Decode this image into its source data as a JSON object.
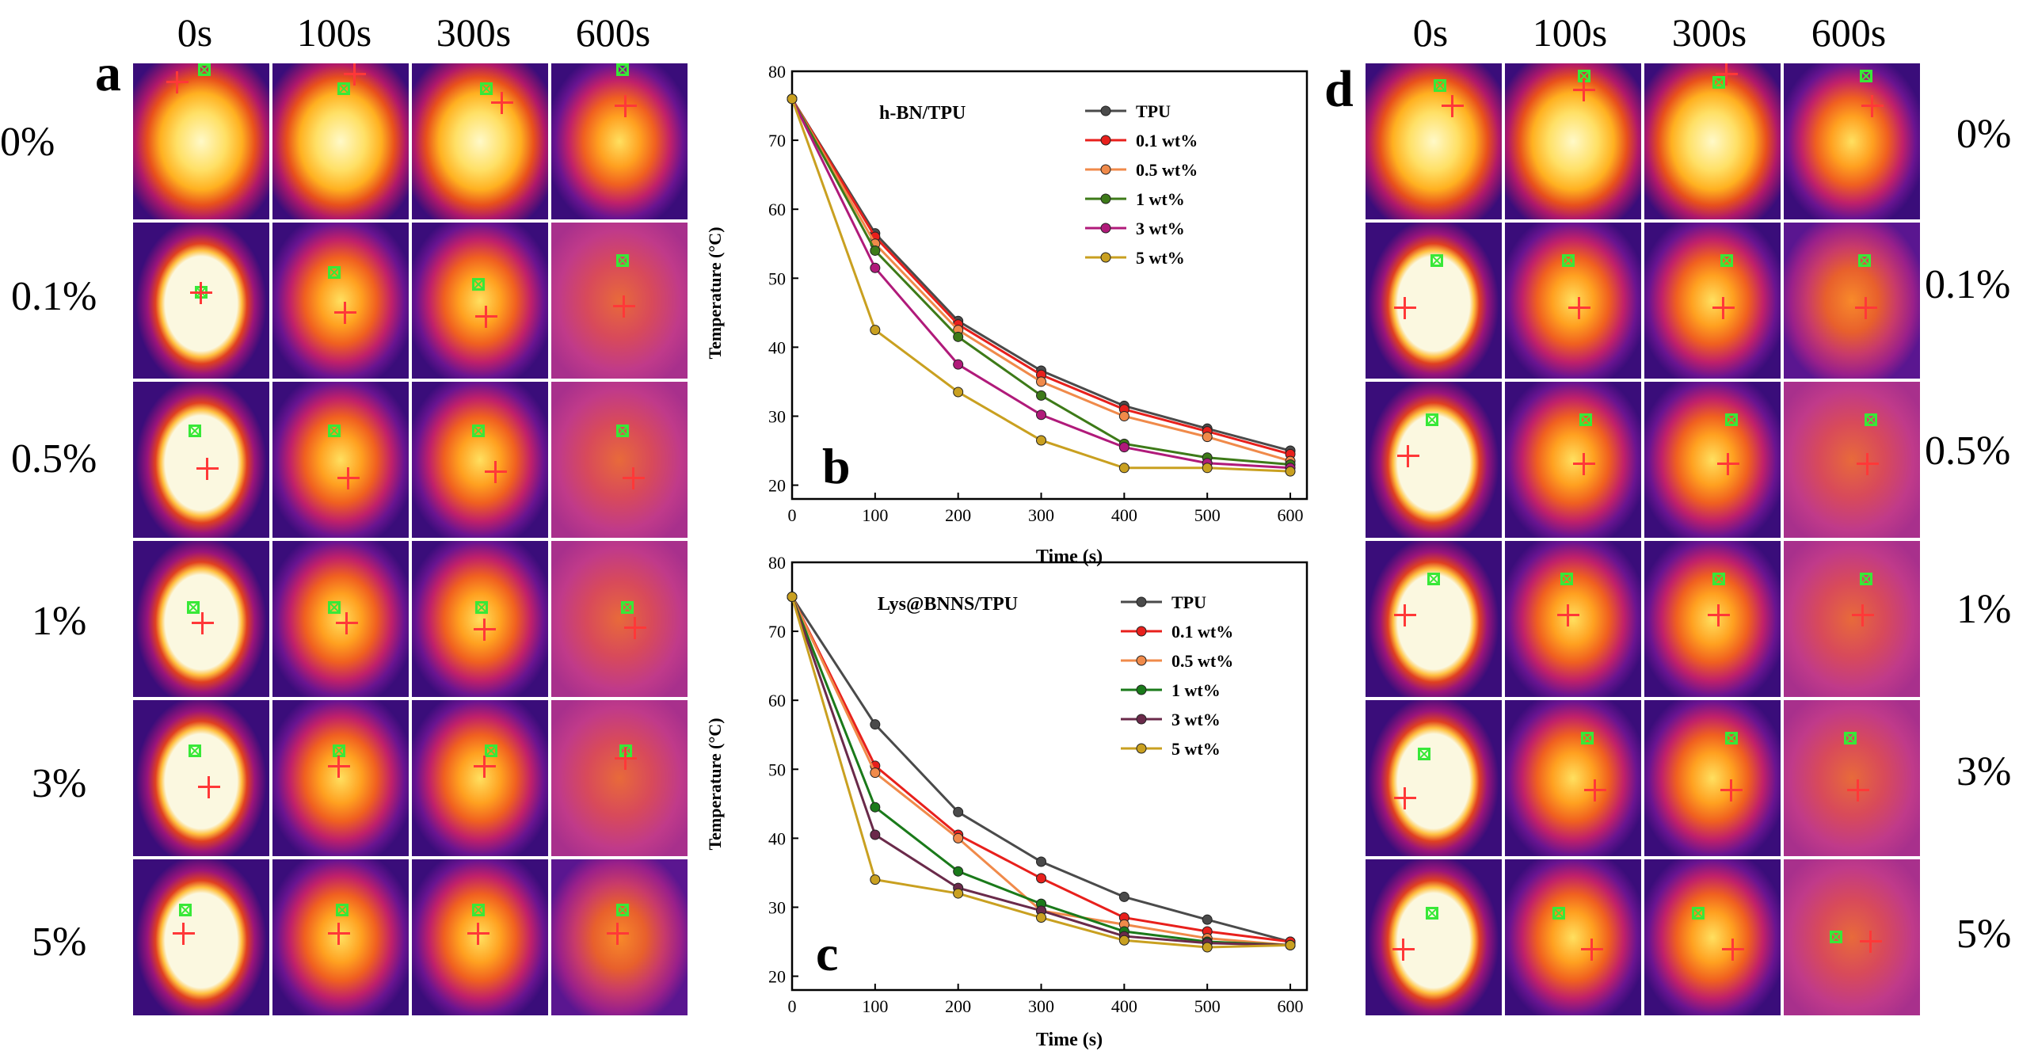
{
  "panel_a": {
    "letter": "a",
    "times": [
      "0s",
      "100s",
      "300s",
      "600s"
    ],
    "rows": [
      "0%",
      "0.1%",
      "0.5%",
      "1%",
      "3%",
      "5%"
    ]
  },
  "panel_d": {
    "letter": "d",
    "times": [
      "0s",
      "100s",
      "300s",
      "600s"
    ],
    "rows": [
      "0%",
      "0.1%",
      "0.5%",
      "1%",
      "3%",
      "5%"
    ]
  },
  "chart_data": [
    {
      "type": "line",
      "panel": "b",
      "title": "h-BN/TPU",
      "xlabel": "Time (s)",
      "ylabel": "Temperature (°C)",
      "xlim": [
        0,
        620
      ],
      "ylim": [
        18,
        80
      ],
      "xticks": [
        0,
        100,
        200,
        300,
        400,
        500,
        600
      ],
      "yticks": [
        20,
        30,
        40,
        50,
        60,
        70,
        80
      ],
      "legend_position": "top-right",
      "x": [
        0,
        100,
        200,
        300,
        400,
        500,
        600
      ],
      "series": [
        {
          "name": "TPU",
          "color": "#4a4a4a",
          "values": [
            76,
            56.5,
            43.8,
            36.6,
            31.5,
            28.2,
            25
          ]
        },
        {
          "name": "0.1 wt%",
          "color": "#e8201c",
          "values": [
            76,
            56,
            43.3,
            36,
            31,
            27.8,
            24.5
          ]
        },
        {
          "name": "0.5 wt%",
          "color": "#f08a4a",
          "values": [
            76,
            55,
            42.5,
            35,
            30,
            27,
            23.5
          ]
        },
        {
          "name": "1 wt%",
          "color": "#3d7a18",
          "values": [
            76,
            54,
            41.5,
            33,
            26,
            24,
            23
          ]
        },
        {
          "name": "3 wt%",
          "color": "#b01a7a",
          "values": [
            76,
            51.5,
            37.5,
            30.2,
            25.5,
            23.2,
            22.5
          ]
        },
        {
          "name": "5 wt%",
          "color": "#c9a020",
          "values": [
            76,
            42.5,
            33.5,
            26.5,
            22.5,
            22.5,
            22
          ]
        }
      ]
    },
    {
      "type": "line",
      "panel": "c",
      "title": "Lys@BNNS/TPU",
      "xlabel": "Time (s)",
      "ylabel": "Temperature (°C)",
      "xlim": [
        0,
        620
      ],
      "ylim": [
        18,
        80
      ],
      "xticks": [
        0,
        100,
        200,
        300,
        400,
        500,
        600
      ],
      "yticks": [
        20,
        30,
        40,
        50,
        60,
        70,
        80
      ],
      "legend_position": "top-right",
      "x": [
        0,
        100,
        200,
        300,
        400,
        500,
        600
      ],
      "series": [
        {
          "name": "TPU",
          "color": "#4a4a4a",
          "values": [
            75,
            56.5,
            43.8,
            36.6,
            31.5,
            28.2,
            25
          ]
        },
        {
          "name": "0.1 wt%",
          "color": "#e8201c",
          "values": [
            75,
            50.5,
            40.5,
            34.2,
            28.5,
            26.5,
            25
          ]
        },
        {
          "name": "0.5 wt%",
          "color": "#f08a4a",
          "values": [
            75,
            49.5,
            40,
            29.5,
            27.5,
            25.5,
            24.5
          ]
        },
        {
          "name": "1 wt%",
          "color": "#1a7a1a",
          "values": [
            75,
            44.5,
            35.2,
            30.5,
            26.5,
            25,
            24.5
          ]
        },
        {
          "name": "3 wt%",
          "color": "#6a2a4a",
          "values": [
            75,
            40.5,
            32.8,
            29.5,
            25.8,
            24.8,
            24.5
          ]
        },
        {
          "name": "5 wt%",
          "color": "#c9a020",
          "values": [
            75,
            34,
            32,
            28.5,
            25.2,
            24.2,
            24.5
          ]
        }
      ]
    }
  ]
}
